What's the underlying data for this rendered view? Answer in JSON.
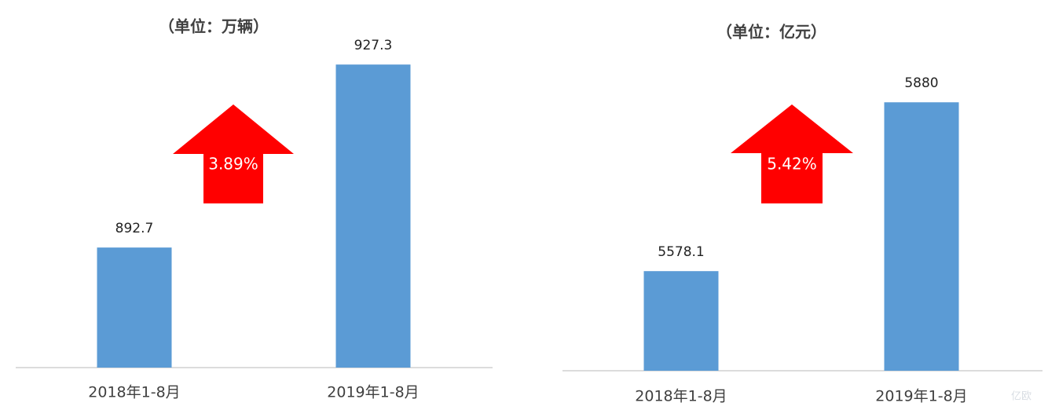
{
  "chart_data": [
    {
      "type": "bar",
      "title": "（单位：万辆）",
      "categories": [
        "2018年1-8月",
        "2019年1-8月"
      ],
      "values": [
        892.7,
        927.3
      ],
      "color": "#5b9bd5",
      "ylim": [
        870,
        930
      ],
      "annotation": "3.89%",
      "annotation_color": "#ff0000"
    },
    {
      "type": "bar",
      "title": "（单位：亿元）",
      "categories": [
        "2018年1-8月",
        "2019年1-8月"
      ],
      "values": [
        5578.1,
        5880
      ],
      "color": "#5b9bd5",
      "ylim": [
        5400,
        5900
      ],
      "annotation": "5.42%",
      "annotation_color": "#ff0000"
    }
  ],
  "watermark": "亿欧"
}
